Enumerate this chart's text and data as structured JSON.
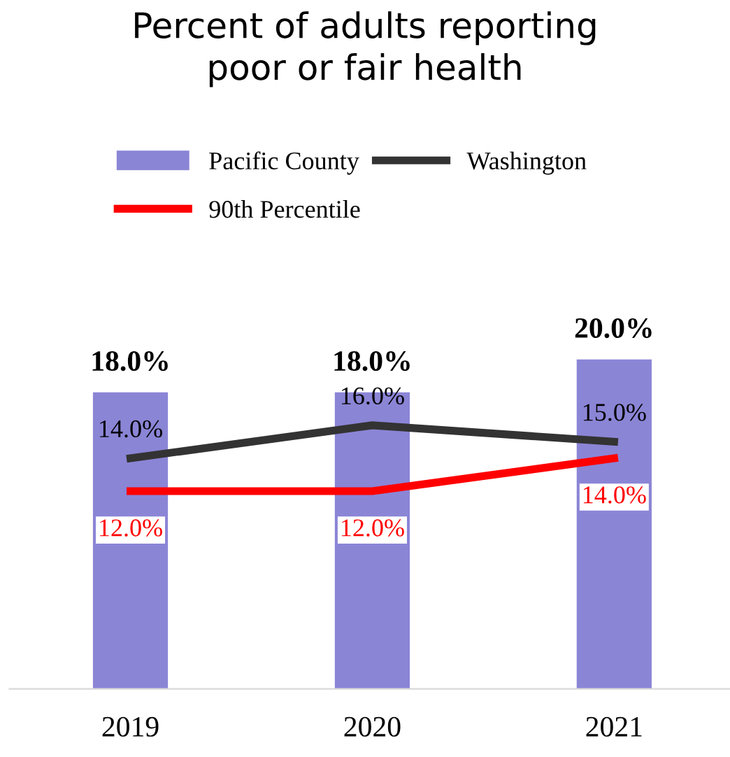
{
  "chart_data": {
    "type": "bar",
    "title": "Percent of adults reporting\npoor or fair health",
    "categories": [
      "2019",
      "2020",
      "2021"
    ],
    "series": [
      {
        "name": "Pacific County",
        "color": "#8b85d6",
        "values": [
          18.0,
          18.0,
          20.0
        ],
        "value_labels": [
          "18.0%",
          "18.0%",
          "20.0%"
        ]
      },
      {
        "name": "Washington",
        "type": "line",
        "color": "#333333",
        "values": [
          14.0,
          16.0,
          15.0
        ],
        "value_labels": [
          "14.0%",
          "16.0%",
          "15.0%"
        ]
      },
      {
        "name": "90th Percentile",
        "type": "line",
        "color": "#ff0000",
        "values": [
          12.0,
          12.0,
          14.0
        ],
        "value_labels": [
          "12.0%",
          "12.0%",
          "14.0%"
        ]
      }
    ],
    "tick_labels": "x",
    "legend": "top",
    "grid": false
  }
}
